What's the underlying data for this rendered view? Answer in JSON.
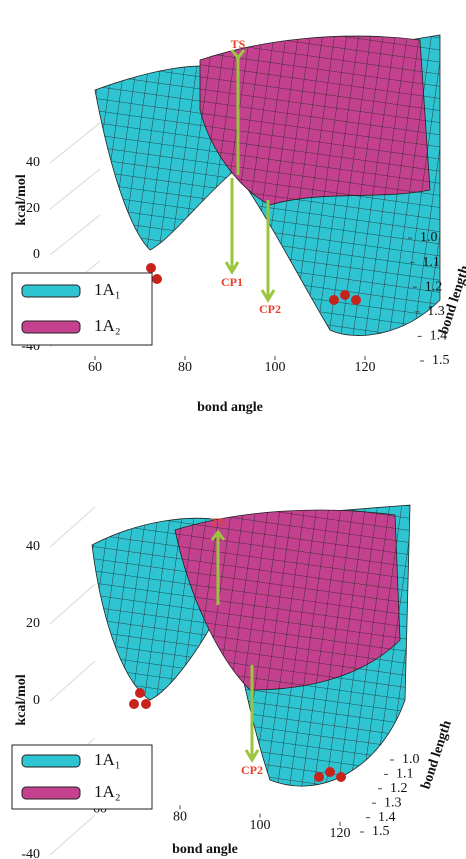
{
  "chart_data": [
    {
      "type": "surface",
      "xlabel": "bond angle",
      "ylabel": "bond length",
      "zlabel": "kcal/mol",
      "xlim": [
        50,
        130
      ],
      "xticks": [
        60,
        80,
        100,
        120
      ],
      "ylim": [
        1.0,
        1.5
      ],
      "yticks": [
        {
          "value": 1.0,
          "label": "1.0"
        },
        1.1,
        1.2,
        1.3,
        1.4,
        1.5
      ],
      "zlim": [
        -40,
        40
      ],
      "zticks": [
        -40,
        -20,
        0,
        20,
        40
      ],
      "series": [
        {
          "name": "1A₁",
          "color": "#2ec4d2"
        },
        {
          "name": "1A₂",
          "color": "#c4418f"
        }
      ],
      "annotations": [
        "TS",
        "CP1",
        "CP2"
      ],
      "grid": true
    },
    {
      "type": "surface",
      "xlabel": "bond angle",
      "ylabel": "bond length",
      "zlabel": "kcal/mol",
      "xlim": [
        50,
        130
      ],
      "xticks": [
        60,
        80,
        100,
        120
      ],
      "ylim": [
        1.0,
        1.5
      ],
      "yticks": [
        {
          "value": 1.0,
          "label": "1.0"
        },
        1.1,
        1.2,
        1.3,
        1.4,
        1.5
      ],
      "zlim": [
        -40,
        40
      ],
      "zticks": [
        -40,
        -20,
        0,
        20,
        40
      ],
      "series": [
        {
          "name": "1A₁",
          "color": "#2ec4d2"
        },
        {
          "name": "1A₂",
          "color": "#c4418f"
        }
      ],
      "annotations": [
        "TS",
        "CP2"
      ],
      "grid": true
    }
  ]
}
